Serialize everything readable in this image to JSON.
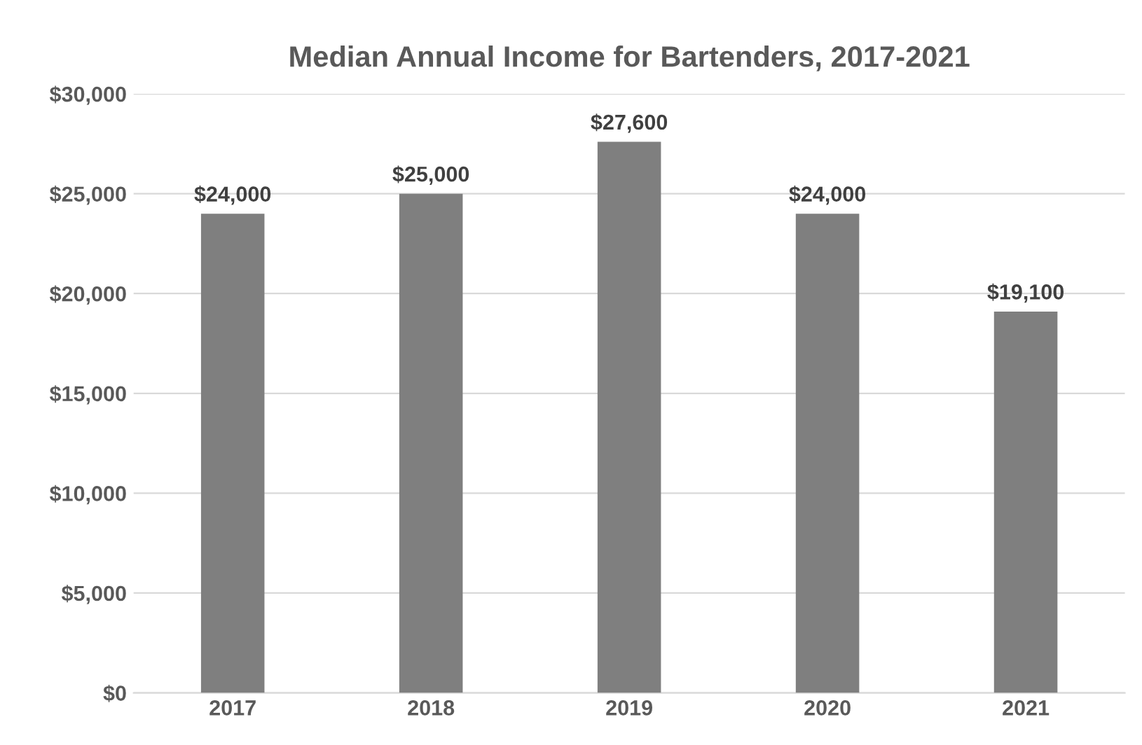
{
  "chart_data": {
    "type": "bar",
    "title": "Median Annual Income for Bartenders, 2017-2021",
    "categories": [
      "2017",
      "2018",
      "2019",
      "2020",
      "2021"
    ],
    "values": [
      24000,
      25000,
      27600,
      24000,
      19100
    ],
    "value_labels": [
      "$24,000",
      "$25,000",
      "$27,600",
      "$24,000",
      "$19,100"
    ],
    "color": "#7f7f7f",
    "ylim": [
      0,
      30000
    ],
    "yticks": [
      {
        "value": 0,
        "label": "$0"
      },
      {
        "value": 5000,
        "label": "$5,000"
      },
      {
        "value": 10000,
        "label": "$10,000"
      },
      {
        "value": 15000,
        "label": "$15,000"
      },
      {
        "value": 20000,
        "label": "$20,000"
      },
      {
        "value": 25000,
        "label": "$25,000"
      },
      {
        "value": 30000,
        "label": "$30,000"
      }
    ],
    "grid": "y",
    "legend": false
  }
}
